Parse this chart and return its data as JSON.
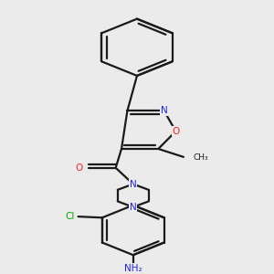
{
  "bg_color": "#ebebeb",
  "bond_color": "#1a1a1a",
  "n_color": "#2020ff",
  "o_color": "#ff2020",
  "cl_color": "#00aa00",
  "text_color": "#1a1a1a",
  "lw": 1.6,
  "figsize": [
    3.0,
    3.0
  ],
  "dpi": 100,
  "xlim": [
    0.15,
    0.85
  ],
  "ylim": [
    0.02,
    1.0
  ]
}
